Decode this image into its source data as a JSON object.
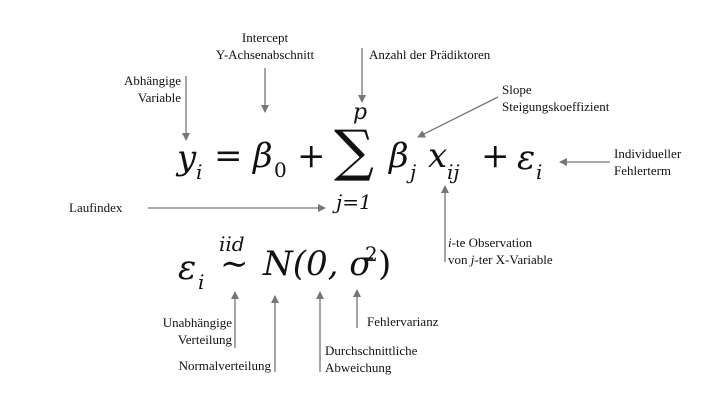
{
  "equation": {
    "y": "y",
    "y_sub": "i",
    "equals": "=",
    "beta": "β",
    "beta0_sub": "0",
    "plus1": "+",
    "sum": "∑",
    "sum_top": "p",
    "sum_bottom": "j=1",
    "betaj": "β",
    "betaj_sub": "j",
    "x": "x",
    "x_sub": "ij",
    "plus2": "+",
    "eps": "ε",
    "eps_sub": "i"
  },
  "distribution": {
    "eps": "ε",
    "eps_sub": "i",
    "tilde": "∼",
    "iid": "iid",
    "N": "N(0, σ",
    "power": "2",
    "close": ")"
  },
  "annotations": {
    "intercept_line1": "Intercept",
    "intercept_line2": "Y-Achsenabschnitt",
    "predictors": "Anzahl der Prädiktoren",
    "dependent_line1": "Abhängige",
    "dependent_line2": "Variable",
    "slope_line1": "Slope",
    "slope_line2": "Steigungskoeffizient",
    "error_line1": "Individueller",
    "error_line2": "Fehlerterm",
    "index": "Laufindex",
    "obs_line1_i": "i",
    "obs_line1_rest": "-te Observation",
    "obs_line2_pre": "von ",
    "obs_line2_j": "j",
    "obs_line2_rest": "-ter X-Variable",
    "indep_line1": "Unabhängige",
    "indep_line2": "Verteilung",
    "normal": "Normalverteilung",
    "mean_line1": "Durchschnittliche",
    "mean_line2": "Abweichung",
    "variance": "Fehlervarianz"
  },
  "colors": {
    "arrow": "#777777",
    "text": "#111111",
    "background": "#ffffff"
  }
}
